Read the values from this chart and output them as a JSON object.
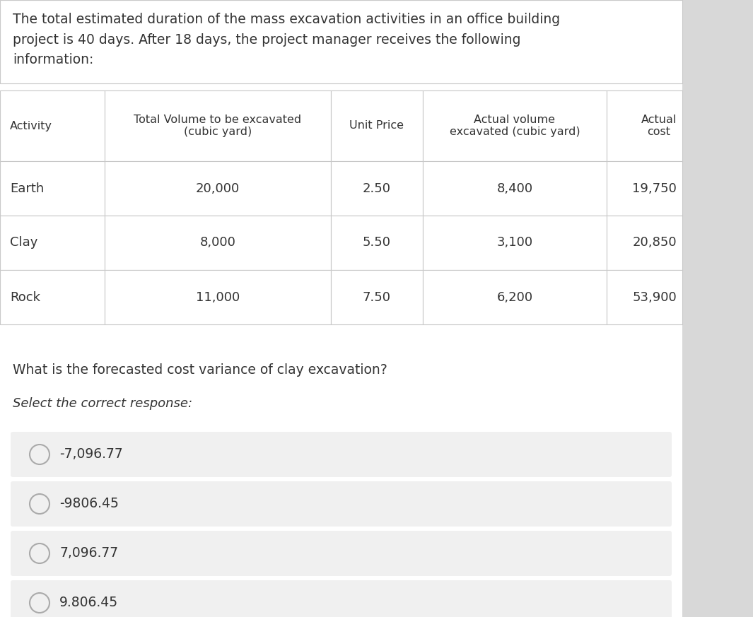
{
  "intro_text": "The total estimated duration of the mass excavation activities in an office building\nproject is 40 days. After 18 days, the project manager receives the following\ninformation:",
  "table": {
    "col_headers": [
      "Activity",
      "Total Volume to be excavated\n(cubic yard)",
      "Unit Price",
      "Actual volume\nexcavated (cubic yard)",
      "Actual\ncost"
    ],
    "rows": [
      [
        "Earth",
        "20,000",
        "2.50",
        "8,400",
        "19,750"
      ],
      [
        "Clay",
        "8,000",
        "5.50",
        "3,100",
        "20,850"
      ],
      [
        "Rock",
        "11,000",
        "7.50",
        "6,200",
        "53,900"
      ]
    ]
  },
  "question": "What is the forecasted cost variance of clay excavation?",
  "select_text": "Select the correct response:",
  "options": [
    "-7,096.77",
    "-9806.45",
    "7,096.77",
    "9.806.45"
  ],
  "bg_color": "#f5f5f5",
  "white": "#ffffff",
  "table_border_color": "#c8c8c8",
  "option_bg_color": "#f0f0f0",
  "text_color": "#333333",
  "right_panel_color": "#d8d8d8",
  "circle_color": "#aaaaaa"
}
